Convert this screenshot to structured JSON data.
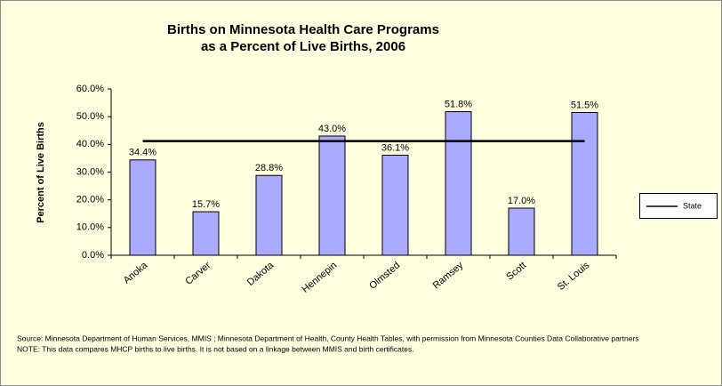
{
  "chart_data": {
    "type": "bar",
    "title": [
      "Births on Minnesota Health Care Programs",
      "as a Percent of Live Births, 2006"
    ],
    "y_axis_label": "Percent of Live Births",
    "categories": [
      "Anoka",
      "Carver",
      "Dakota",
      "Hennepin",
      "Olmsted",
      "Ramsey",
      "Scott",
      "St. Louis"
    ],
    "values": [
      34.4,
      15.7,
      28.8,
      43.0,
      36.1,
      51.8,
      17.0,
      51.5
    ],
    "value_labels": [
      "34.4%",
      "15.7%",
      "28.8%",
      "43.0%",
      "36.1%",
      "51.8%",
      "17.0%",
      "51.5%"
    ],
    "color": "#aaaaff",
    "series": [
      {
        "name": "State",
        "type": "line",
        "color": "#000000",
        "values": [
          41.2,
          41.2,
          41.2,
          41.2,
          41.2,
          41.2,
          41.2,
          41.2
        ]
      }
    ],
    "ylim": [
      0,
      60
    ],
    "yticks": [
      {
        "value": 0,
        "label": "0.0%"
      },
      {
        "value": 10,
        "label": "10.0%"
      },
      {
        "value": 20,
        "label": "20.0%"
      },
      {
        "value": 30,
        "label": "30.0%"
      },
      {
        "value": 40,
        "label": "40.0%"
      },
      {
        "value": 50,
        "label": "50.0%"
      },
      {
        "value": 60,
        "label": "60.0%"
      }
    ],
    "legend": "right",
    "notes": [
      "Source: Minnesota Department of Human Services, MMIS ; Minnesota Department of Health, County Health Tables, with permission from Minnesota Counties Data Collaborative partners",
      "NOTE: This data compares MHCP births to live births.  It is not based on a linkage between MMIS and birth certificates."
    ]
  }
}
